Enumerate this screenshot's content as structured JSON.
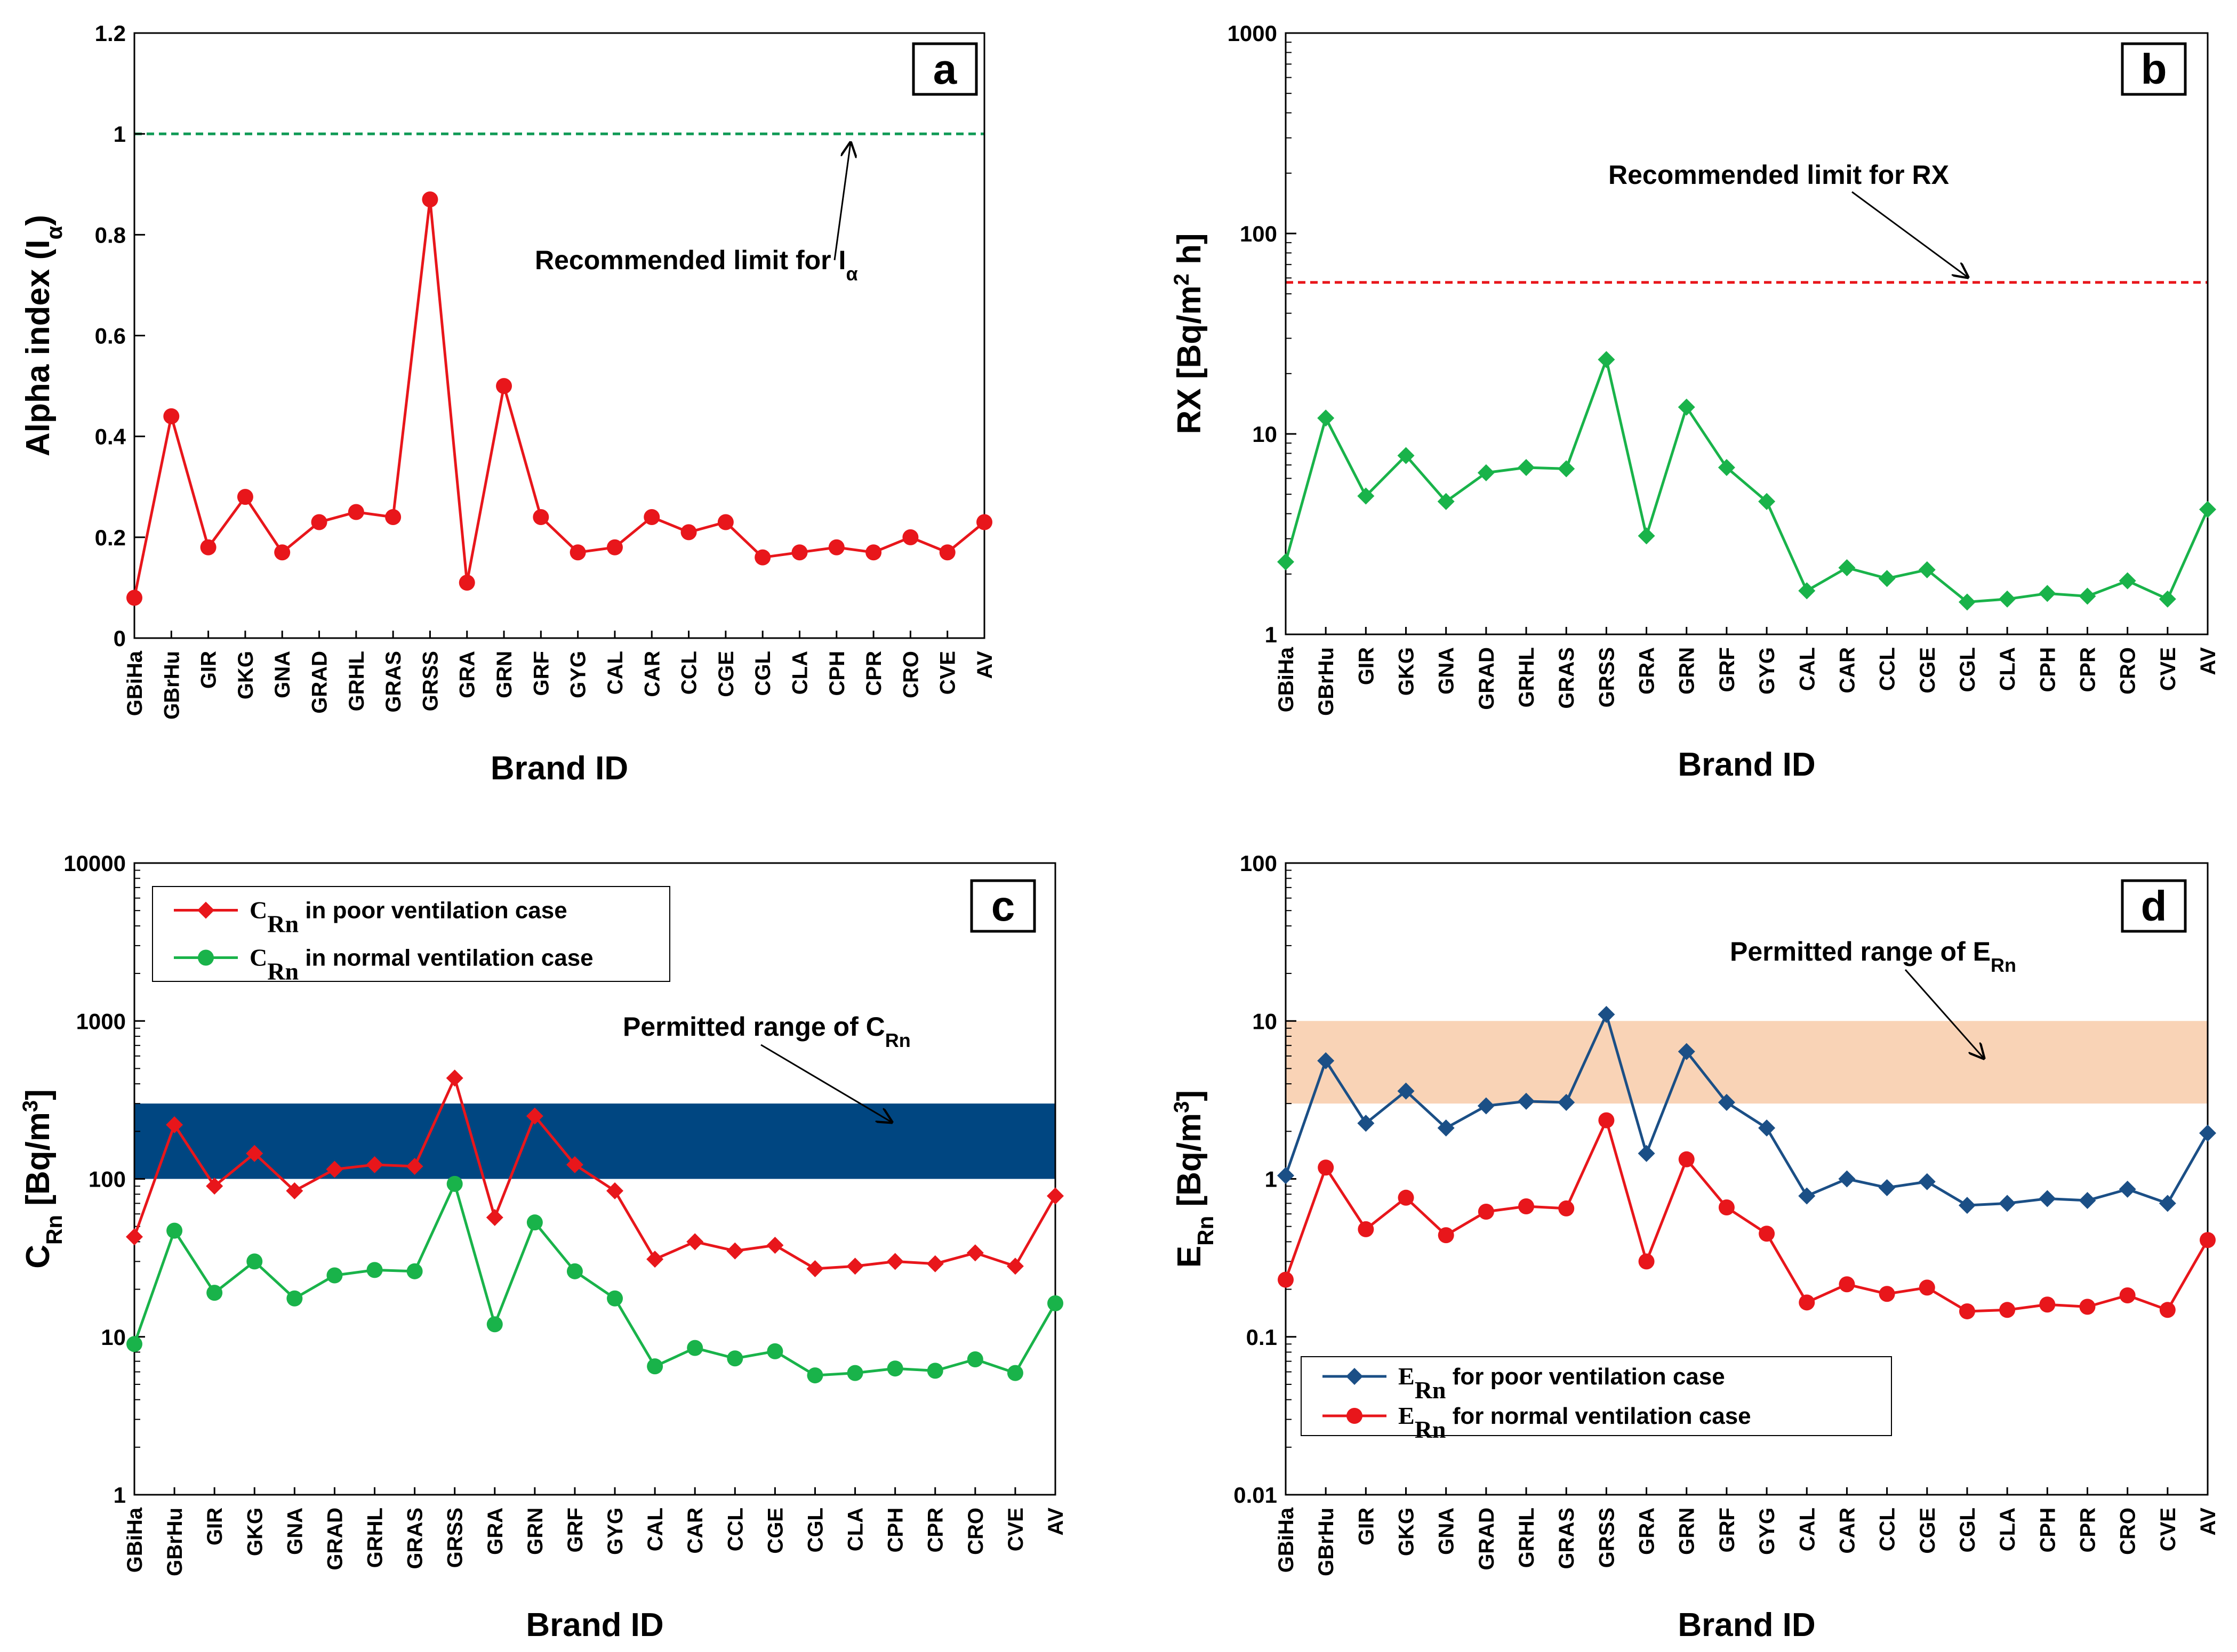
{
  "categories": [
    "GBiHa",
    "GBrHu",
    "GIR",
    "GKG",
    "GNA",
    "GRAD",
    "GRHL",
    "GRAS",
    "GRSS",
    "GRA",
    "GRN",
    "GRF",
    "GYG",
    "CAL",
    "CAR",
    "CCL",
    "CGE",
    "CGL",
    "CLA",
    "CPH",
    "CPR",
    "CRO",
    "CVE",
    "AV"
  ],
  "colors": {
    "red": "#e8161b",
    "green": "#19b34a",
    "blue": "#1b4f86",
    "navy": "#004681",
    "peach": "#f9d3b6",
    "limit_green": "#0f9a55"
  },
  "chart_data": [
    {
      "type": "line",
      "panel": "a",
      "xlabel": "Brand ID",
      "ylabel_main": "Alpha index (I",
      "ylabel_sub": "α",
      "ylabel_end": ")",
      "scale": "linear",
      "ylim": [
        0,
        1.2
      ],
      "yticks": [
        "0",
        "0.2",
        "0.4",
        "0.6",
        "0.8",
        "1",
        "1.2"
      ],
      "tick_values": [
        0,
        0.2,
        0.4,
        0.6,
        0.8,
        1.0,
        1.2
      ],
      "series": [
        {
          "name": "Alpha index",
          "color": "#e8161b",
          "marker": "circle",
          "values": [
            0.08,
            0.44,
            0.18,
            0.28,
            0.17,
            0.23,
            0.25,
            0.24,
            0.87,
            0.11,
            0.5,
            0.24,
            0.17,
            0.18,
            0.24,
            0.21,
            0.23,
            0.16,
            0.17,
            0.18,
            0.17,
            0.2,
            0.17,
            0.23
          ]
        }
      ],
      "limit": {
        "value": 1.0,
        "color": "#0f9a55"
      },
      "annotation": {
        "main": "Recommended limit for I",
        "sub": "α"
      }
    },
    {
      "type": "line",
      "panel": "b",
      "xlabel": "Brand ID",
      "ylabel_main": "RX [Bq/m",
      "ylabel_sup": "2",
      "ylabel_end": " h]",
      "scale": "log",
      "ylim": [
        1,
        1000
      ],
      "yticks": [
        "1",
        "10",
        "100",
        "1000"
      ],
      "tick_values": [
        1,
        10,
        100,
        1000
      ],
      "series": [
        {
          "name": "RX",
          "color": "#19b34a",
          "marker": "diamond",
          "values": [
            2.3,
            12.0,
            4.9,
            7.8,
            4.6,
            6.4,
            6.8,
            6.7,
            23.5,
            3.1,
            13.6,
            6.8,
            4.6,
            1.65,
            2.15,
            1.9,
            2.1,
            1.45,
            1.5,
            1.6,
            1.55,
            1.85,
            1.5,
            4.2
          ]
        }
      ],
      "limit": {
        "value": 57,
        "color": "#e8161b"
      },
      "annotation": {
        "main": "Recommended limit for RX"
      }
    },
    {
      "type": "line",
      "panel": "c",
      "xlabel": "Brand ID",
      "ylabel_main": "C",
      "ylabel_sub": "Rn",
      "ylabel_end": " [Bq/m",
      "ylabel_sup": "3",
      "ylabel_close": "]",
      "scale": "log",
      "ylim": [
        1,
        10000
      ],
      "yticks": [
        "1",
        "10",
        "100",
        "1000",
        "10000"
      ],
      "tick_values": [
        1,
        10,
        100,
        1000,
        10000
      ],
      "series": [
        {
          "name": "C_Rn in poor ventilation case",
          "color": "#e8161b",
          "marker": "diamond",
          "values": [
            43,
            220,
            90,
            145,
            84,
            115,
            123,
            120,
            435,
            57,
            250,
            123,
            84,
            31,
            40,
            35,
            38,
            27,
            28,
            30,
            29,
            34,
            28,
            78
          ]
        },
        {
          "name": "C_Rn in normal ventilation case",
          "color": "#19b34a",
          "marker": "circle",
          "values": [
            9,
            47,
            19,
            30,
            17.5,
            24.5,
            26.5,
            26,
            93,
            12,
            53,
            26,
            17.5,
            6.5,
            8.5,
            7.3,
            8.1,
            5.7,
            5.9,
            6.3,
            6.1,
            7.2,
            5.9,
            16.3
          ]
        }
      ],
      "band": {
        "low": 100,
        "high": 300,
        "color": "#004681"
      },
      "annotation": {
        "main": "Permitted range of C",
        "sub": "Rn"
      },
      "legend": [
        {
          "sym": "C",
          "sub": "Rn",
          "text": " in poor ventilation case"
        },
        {
          "sym": "C",
          "sub": "Rn",
          "text": " in normal ventilation case"
        }
      ]
    },
    {
      "type": "line",
      "panel": "d",
      "xlabel": "Brand ID",
      "ylabel_main": "E",
      "ylabel_sub": "Rn",
      "ylabel_end": " [Bq/m",
      "ylabel_sup": "3",
      "ylabel_close": "]",
      "scale": "log",
      "ylim": [
        0.01,
        100
      ],
      "yticks": [
        "0.01",
        "0.1",
        "1",
        "10",
        "100"
      ],
      "tick_values": [
        0.01,
        0.1,
        1,
        10,
        100
      ],
      "series": [
        {
          "name": "E_Rn for poor ventilation case",
          "color": "#1b4f86",
          "marker": "diamond",
          "values": [
            1.05,
            5.6,
            2.25,
            3.6,
            2.1,
            2.9,
            3.1,
            3.05,
            11.0,
            1.45,
            6.4,
            3.05,
            2.1,
            0.78,
            1.0,
            0.88,
            0.96,
            0.68,
            0.7,
            0.75,
            0.73,
            0.86,
            0.7,
            1.95
          ]
        },
        {
          "name": "E_Rn for normal ventilation case",
          "color": "#e8161b",
          "marker": "circle",
          "values": [
            0.23,
            1.18,
            0.48,
            0.76,
            0.44,
            0.62,
            0.67,
            0.65,
            2.35,
            0.3,
            1.33,
            0.66,
            0.45,
            0.165,
            0.215,
            0.187,
            0.205,
            0.145,
            0.148,
            0.16,
            0.155,
            0.183,
            0.148,
            0.41
          ]
        }
      ],
      "band": {
        "low": 3,
        "high": 10,
        "color": "#f9d3b6"
      },
      "annotation": {
        "main": "Permitted range of E",
        "sub": "Rn"
      },
      "legend": [
        {
          "sym": "E",
          "sub": "Rn",
          "text": " for poor ventilation case"
        },
        {
          "sym": "E",
          "sub": "Rn",
          "text": " for normal ventilation case"
        }
      ]
    }
  ]
}
